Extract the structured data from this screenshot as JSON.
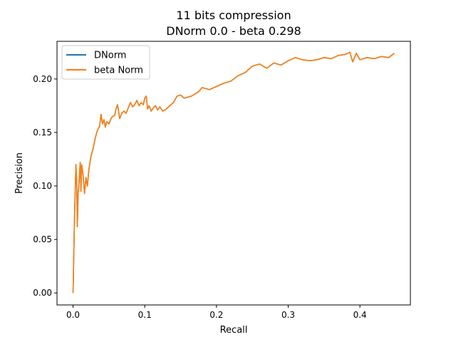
{
  "chart_data": {
    "type": "line",
    "title": "11 bits compression",
    "subtitle": "DNorm 0.0 - beta 0.298",
    "xlabel": "Recall",
    "ylabel": "Precision",
    "xlim": [
      -0.0224,
      0.4704
    ],
    "ylim": [
      -0.0112,
      0.2352
    ],
    "xticks": [
      0.0,
      0.1,
      0.2,
      0.3,
      0.4
    ],
    "xtick_labels": [
      "0.0",
      "0.1",
      "0.2",
      "0.3",
      "0.4"
    ],
    "yticks": [
      0.0,
      0.05,
      0.1,
      0.15,
      0.2
    ],
    "ytick_labels": [
      "0.00",
      "0.05",
      "0.10",
      "0.15",
      "0.20"
    ],
    "grid": false,
    "legend_position": "upper-left",
    "series": [
      {
        "name": "DNorm",
        "color": "#1f77b4",
        "x": [
          0.0,
          0.002,
          0.004,
          0.005,
          0.006,
          0.007,
          0.008,
          0.01,
          0.011,
          0.012,
          0.014,
          0.016,
          0.018,
          0.02,
          0.022,
          0.025,
          0.028,
          0.031,
          0.034,
          0.037,
          0.039,
          0.041,
          0.043,
          0.045,
          0.047,
          0.05,
          0.053,
          0.055,
          0.058,
          0.06,
          0.062,
          0.065,
          0.068,
          0.071,
          0.074,
          0.077,
          0.08,
          0.083,
          0.086,
          0.089,
          0.092,
          0.095,
          0.098,
          0.1,
          0.102,
          0.104,
          0.106,
          0.109,
          0.112,
          0.115,
          0.118,
          0.121,
          0.125,
          0.13,
          0.135,
          0.14,
          0.145,
          0.15,
          0.155,
          0.16,
          0.165,
          0.17,
          0.175,
          0.18,
          0.19,
          0.2,
          0.21,
          0.22,
          0.23,
          0.24,
          0.25,
          0.26,
          0.27,
          0.28,
          0.29,
          0.3,
          0.31,
          0.32,
          0.33,
          0.34,
          0.35,
          0.36,
          0.37,
          0.38,
          0.386,
          0.39,
          0.395,
          0.4,
          0.41,
          0.42,
          0.43,
          0.44,
          0.448
        ],
        "y": [
          0.0,
          0.07,
          0.12,
          0.105,
          0.062,
          0.092,
          0.1,
          0.122,
          0.095,
          0.12,
          0.11,
          0.093,
          0.108,
          0.1,
          0.115,
          0.128,
          0.135,
          0.145,
          0.152,
          0.156,
          0.167,
          0.158,
          0.162,
          0.155,
          0.16,
          0.158,
          0.163,
          0.165,
          0.166,
          0.172,
          0.176,
          0.163,
          0.168,
          0.17,
          0.168,
          0.173,
          0.178,
          0.174,
          0.176,
          0.18,
          0.175,
          0.178,
          0.176,
          0.182,
          0.184,
          0.172,
          0.175,
          0.17,
          0.173,
          0.175,
          0.171,
          0.174,
          0.17,
          0.172,
          0.175,
          0.178,
          0.184,
          0.185,
          0.182,
          0.183,
          0.184,
          0.186,
          0.188,
          0.192,
          0.19,
          0.193,
          0.196,
          0.198,
          0.203,
          0.206,
          0.212,
          0.214,
          0.21,
          0.215,
          0.213,
          0.217,
          0.22,
          0.218,
          0.217,
          0.218,
          0.22,
          0.219,
          0.222,
          0.223,
          0.225,
          0.216,
          0.224,
          0.218,
          0.22,
          0.219,
          0.221,
          0.22,
          0.224
        ]
      },
      {
        "name": "beta Norm",
        "color": "#ff7f0e",
        "x": [
          0.0,
          0.002,
          0.004,
          0.005,
          0.006,
          0.007,
          0.008,
          0.01,
          0.011,
          0.012,
          0.014,
          0.016,
          0.018,
          0.02,
          0.022,
          0.025,
          0.028,
          0.031,
          0.034,
          0.037,
          0.039,
          0.041,
          0.043,
          0.045,
          0.047,
          0.05,
          0.053,
          0.055,
          0.058,
          0.06,
          0.062,
          0.065,
          0.068,
          0.071,
          0.074,
          0.077,
          0.08,
          0.083,
          0.086,
          0.089,
          0.092,
          0.095,
          0.098,
          0.1,
          0.102,
          0.104,
          0.106,
          0.109,
          0.112,
          0.115,
          0.118,
          0.121,
          0.125,
          0.13,
          0.135,
          0.14,
          0.145,
          0.15,
          0.155,
          0.16,
          0.165,
          0.17,
          0.175,
          0.18,
          0.19,
          0.2,
          0.21,
          0.22,
          0.23,
          0.24,
          0.25,
          0.26,
          0.27,
          0.28,
          0.29,
          0.3,
          0.31,
          0.32,
          0.33,
          0.34,
          0.35,
          0.36,
          0.37,
          0.38,
          0.386,
          0.39,
          0.395,
          0.4,
          0.41,
          0.42,
          0.43,
          0.44,
          0.448
        ],
        "y": [
          0.0,
          0.07,
          0.12,
          0.105,
          0.062,
          0.092,
          0.1,
          0.122,
          0.095,
          0.12,
          0.11,
          0.093,
          0.108,
          0.1,
          0.115,
          0.128,
          0.135,
          0.145,
          0.152,
          0.156,
          0.167,
          0.158,
          0.162,
          0.155,
          0.16,
          0.158,
          0.163,
          0.165,
          0.166,
          0.172,
          0.176,
          0.163,
          0.168,
          0.17,
          0.168,
          0.173,
          0.178,
          0.174,
          0.176,
          0.18,
          0.175,
          0.178,
          0.176,
          0.182,
          0.184,
          0.172,
          0.175,
          0.17,
          0.173,
          0.175,
          0.171,
          0.174,
          0.17,
          0.172,
          0.175,
          0.178,
          0.184,
          0.185,
          0.182,
          0.183,
          0.184,
          0.186,
          0.188,
          0.192,
          0.19,
          0.193,
          0.196,
          0.198,
          0.203,
          0.206,
          0.212,
          0.214,
          0.21,
          0.215,
          0.213,
          0.217,
          0.22,
          0.218,
          0.217,
          0.218,
          0.22,
          0.219,
          0.222,
          0.223,
          0.225,
          0.216,
          0.224,
          0.218,
          0.22,
          0.219,
          0.221,
          0.22,
          0.224
        ]
      }
    ]
  }
}
